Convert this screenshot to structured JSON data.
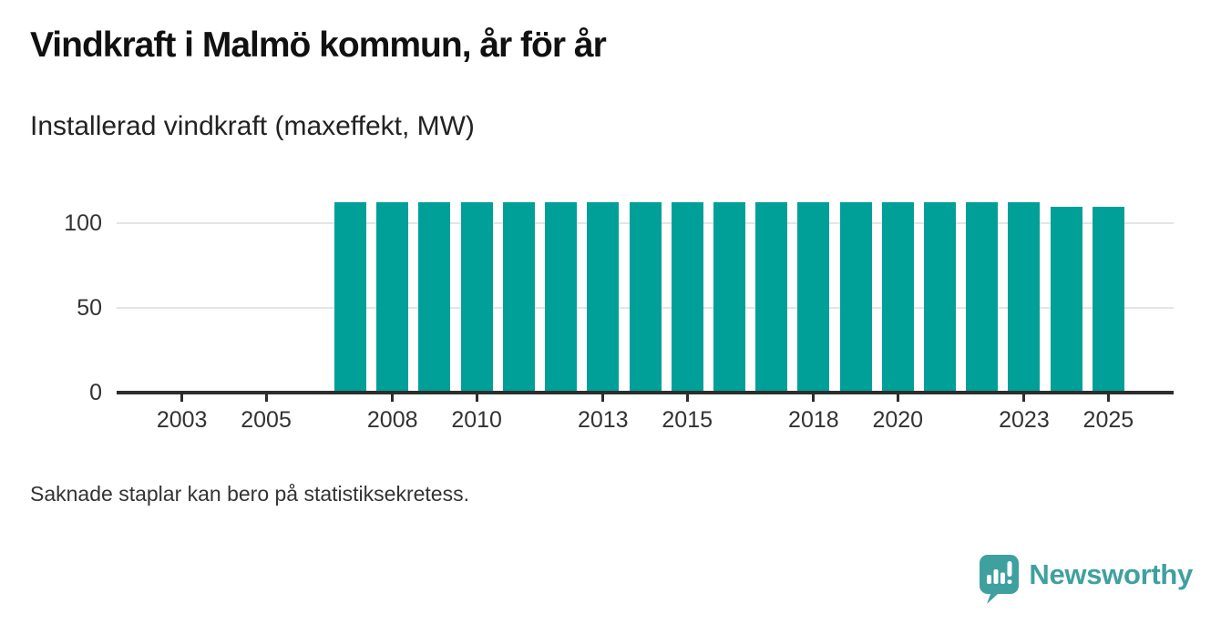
{
  "chart_data": {
    "type": "bar",
    "title": "Vindkraft i Malmö kommun, år för år",
    "subtitle": "Installerad vindkraft (maxeffekt, MW)",
    "ylabel": "",
    "xlabel": "",
    "unit": "MW",
    "x": [
      2007,
      2008,
      2009,
      2010,
      2011,
      2012,
      2013,
      2014,
      2015,
      2016,
      2017,
      2018,
      2019,
      2020,
      2021,
      2022,
      2023,
      2024,
      2025
    ],
    "values": [
      112.5,
      112.5,
      112.5,
      112.5,
      112.5,
      112.5,
      112.5,
      112.5,
      112.5,
      112.5,
      112.5,
      112.5,
      112.5,
      112.5,
      112.5,
      112.5,
      112.5,
      110,
      110
    ],
    "x_ticks": [
      2003,
      2005,
      2008,
      2010,
      2013,
      2015,
      2018,
      2020,
      2023,
      2025
    ],
    "y_ticks": [
      0,
      50,
      100
    ],
    "ylim": [
      0,
      120
    ],
    "x_domain": [
      2001.45,
      2026.55
    ],
    "grid": "horizontal",
    "legend": "none",
    "note": "Saknade staplar kan bero på statistiksekretess."
  },
  "colors": {
    "bar": "#00a099",
    "axis": "#2d2d2d",
    "gridline": "#e5e5e5",
    "title_text": "#111111",
    "label_text": "#333333",
    "brand_teal": "#3fa0a0"
  },
  "footer": {
    "brand": "Newsworthy"
  },
  "icons": {
    "logo_bubble": "speech-bubble-with-bar-chart-and-exclamation"
  }
}
